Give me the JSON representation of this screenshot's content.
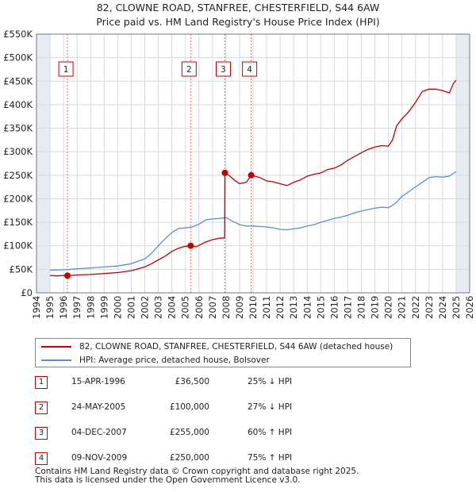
{
  "title": {
    "line1": "82, CLOWNE ROAD, STANFREE, CHESTERFIELD, S44 6AW",
    "line2": "Price paid vs. HM Land Registry's House Price Index (HPI)"
  },
  "colors": {
    "price_paid": "#c00000",
    "hpi": "#5b8fd0",
    "grid": "#d9d9d9",
    "shade": "#e6ecf6",
    "marker_line": "#e06a6a"
  },
  "chart_data": {
    "type": "line",
    "title": "82, CLOWNE ROAD, STANFREE, CHESTERFIELD, S44 6AW",
    "xlabel": "",
    "ylabel": "",
    "xlim": [
      1994,
      2026
    ],
    "ylim": [
      0,
      550000
    ],
    "x_ticks": [
      "1994",
      "1995",
      "1996",
      "1997",
      "1998",
      "1999",
      "2000",
      "2001",
      "2002",
      "2003",
      "2004",
      "2005",
      "2006",
      "2007",
      "2008",
      "2009",
      "2010",
      "2011",
      "2012",
      "2013",
      "2014",
      "2015",
      "2016",
      "2017",
      "2018",
      "2019",
      "2020",
      "2021",
      "2022",
      "2023",
      "2024",
      "2025",
      "2026"
    ],
    "y_ticks": [
      {
        "value": 0,
        "label": "£0"
      },
      {
        "value": 50000,
        "label": "£50K"
      },
      {
        "value": 100000,
        "label": "£100K"
      },
      {
        "value": 150000,
        "label": "£150K"
      },
      {
        "value": 200000,
        "label": "£200K"
      },
      {
        "value": 250000,
        "label": "£250K"
      },
      {
        "value": 300000,
        "label": "£300K"
      },
      {
        "value": 350000,
        "label": "£350K"
      },
      {
        "value": 400000,
        "label": "£400K"
      },
      {
        "value": 450000,
        "label": "£450K"
      },
      {
        "value": 500000,
        "label": "£500K"
      },
      {
        "value": 550000,
        "label": "£550K"
      }
    ],
    "shaded_ranges": [
      [
        1994.0,
        1995.0
      ],
      [
        2025.0,
        2026.0
      ]
    ],
    "series": [
      {
        "name": "82, CLOWNE ROAD, STANFREE, CHESTERFIELD, S44 6AW (detached house)",
        "color": "#c00000",
        "x": [
          1995.0,
          1995.5,
          1996.0,
          1996.29,
          1997.0,
          1998.0,
          1999.0,
          2000.0,
          2001.0,
          2002.0,
          2002.5,
          2003.0,
          2003.5,
          2004.0,
          2004.5,
          2005.0,
          2005.39,
          2005.8,
          2006.5,
          2007.0,
          2007.5,
          2007.9,
          2007.92,
          2008.2,
          2008.6,
          2009.0,
          2009.5,
          2009.86,
          2010.5,
          2011.0,
          2011.5,
          2012.0,
          2012.5,
          2013.0,
          2013.5,
          2014.0,
          2014.5,
          2015.0,
          2015.5,
          2016.0,
          2016.5,
          2017.0,
          2017.5,
          2018.0,
          2018.5,
          2019.0,
          2019.5,
          2020.0,
          2020.3,
          2020.6,
          2021.0,
          2021.5,
          2022.0,
          2022.5,
          2023.0,
          2023.5,
          2024.0,
          2024.5,
          2024.8,
          2025.0
        ],
        "y": [
          37000,
          36000,
          37000,
          36500,
          38000,
          39000,
          41000,
          43000,
          47000,
          55000,
          62000,
          70000,
          78000,
          88000,
          95000,
          99000,
          100000,
          98000,
          108000,
          113000,
          116000,
          117000,
          255000,
          250000,
          240000,
          232000,
          235000,
          250000,
          245000,
          238000,
          236000,
          232000,
          228000,
          235000,
          240000,
          248000,
          252000,
          255000,
          262000,
          265000,
          272000,
          282000,
          290000,
          298000,
          305000,
          310000,
          313000,
          312000,
          325000,
          355000,
          370000,
          385000,
          405000,
          428000,
          433000,
          433000,
          430000,
          425000,
          445000,
          452000
        ]
      },
      {
        "name": "HPI: Average price, detached house, Bolsover",
        "color": "#5b8fd0",
        "x": [
          1995.0,
          1996.0,
          1997.0,
          1998.0,
          1999.0,
          2000.0,
          2001.0,
          2002.0,
          2002.5,
          2003.0,
          2003.5,
          2004.0,
          2004.5,
          2005.0,
          2005.5,
          2006.0,
          2006.5,
          2007.0,
          2007.5,
          2008.0,
          2008.5,
          2009.0,
          2009.5,
          2010.0,
          2010.5,
          2011.0,
          2011.5,
          2012.0,
          2012.5,
          2013.0,
          2013.5,
          2014.0,
          2014.5,
          2015.0,
          2015.5,
          2016.0,
          2016.5,
          2017.0,
          2017.5,
          2018.0,
          2018.5,
          2019.0,
          2019.5,
          2020.0,
          2020.5,
          2021.0,
          2021.5,
          2022.0,
          2022.5,
          2023.0,
          2023.5,
          2024.0,
          2024.5,
          2025.0
        ],
        "y": [
          48000,
          49000,
          51000,
          53000,
          55000,
          57000,
          62000,
          72000,
          84000,
          100000,
          115000,
          128000,
          137000,
          138000,
          140000,
          146000,
          155000,
          157000,
          158000,
          160000,
          152000,
          145000,
          142000,
          142000,
          141000,
          140000,
          138000,
          135000,
          134000,
          136000,
          138000,
          142000,
          145000,
          150000,
          154000,
          158000,
          161000,
          165000,
          170000,
          174000,
          177000,
          180000,
          182000,
          181000,
          190000,
          205000,
          215000,
          225000,
          235000,
          245000,
          247000,
          246000,
          248000,
          258000
        ]
      }
    ],
    "sale_markers": [
      {
        "label": "1",
        "x": 1996.29,
        "y": 36500
      },
      {
        "label": "2",
        "x": 2005.39,
        "y": 100000
      },
      {
        "label": "3",
        "x": 2007.92,
        "y": 255000
      },
      {
        "label": "4",
        "x": 2009.86,
        "y": 250000
      }
    ]
  },
  "legend": {
    "items": [
      {
        "label": "82, CLOWNE ROAD, STANFREE, CHESTERFIELD, S44 6AW (detached house)",
        "color": "#c00000"
      },
      {
        "label": "HPI: Average price, detached house, Bolsover",
        "color": "#5b8fd0"
      }
    ]
  },
  "sales": [
    {
      "num": "1",
      "date": "15-APR-1996",
      "price": "£36,500",
      "diff": "25% ↓ HPI"
    },
    {
      "num": "2",
      "date": "24-MAY-2005",
      "price": "£100,000",
      "diff": "27% ↓ HPI"
    },
    {
      "num": "3",
      "date": "04-DEC-2007",
      "price": "£255,000",
      "diff": "60% ↑ HPI"
    },
    {
      "num": "4",
      "date": "09-NOV-2009",
      "price": "£250,000",
      "diff": "75% ↑ HPI"
    }
  ],
  "footer": {
    "line1": "Contains HM Land Registry data © Crown copyright and database right 2025.",
    "line2": "This data is licensed under the Open Government Licence v3.0."
  }
}
